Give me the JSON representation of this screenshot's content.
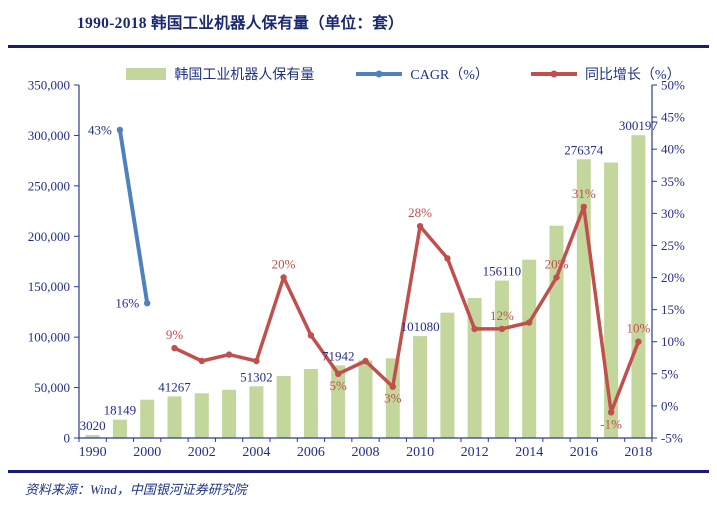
{
  "title": "1990-2018 韩国工业机器人保有量（单位：套）",
  "source": "资料来源：Wind，中国银河证券研究院",
  "colors": {
    "bar_green": "#C3D69B",
    "cagr_blue": "#4F81BD",
    "yoy_red": "#C0504D",
    "navy_text": "#232E8A",
    "rule_navy": "#1A1A78"
  },
  "legend": [
    {
      "label": "韩国工业机器人保有量",
      "type": "bar",
      "color": "#C3D69B"
    },
    {
      "label": "CAGR（%）",
      "type": "line",
      "color": "#4F81BD"
    },
    {
      "label": "同比增长（%）",
      "type": "line",
      "color": "#C0504D"
    }
  ],
  "chart_data": {
    "type": "bar",
    "subtype": "bar-line combo, dual axis",
    "title": "1990-2018 韩国工业机器人保有量（单位：套）",
    "grid": false,
    "categories": [
      "1990",
      "1995",
      "2000",
      "2001",
      "2002",
      "2003",
      "2004",
      "2005",
      "2006",
      "2007",
      "2008",
      "2009",
      "2010",
      "2011",
      "2012",
      "2013",
      "2014",
      "2015",
      "2016",
      "2017",
      "2018"
    ],
    "left_axis": {
      "min": 0,
      "max": 350000,
      "step": 50000,
      "labels": [
        "0",
        "50,000",
        "100,000",
        "150,000",
        "200,000",
        "250,000",
        "300,000",
        "350,000"
      ]
    },
    "right_axis": {
      "min": -5,
      "max": 50,
      "step": 5,
      "labels": [
        "-5%",
        "0%",
        "5%",
        "10%",
        "15%",
        "20%",
        "25%",
        "30%",
        "35%",
        "40%",
        "45%",
        "50%"
      ]
    },
    "x_ticks": [
      {
        "index": 0,
        "label": "1990"
      },
      {
        "index": 2,
        "label": "2000"
      },
      {
        "index": 4,
        "label": "2002"
      },
      {
        "index": 6,
        "label": "2004"
      },
      {
        "index": 8,
        "label": "2006"
      },
      {
        "index": 10,
        "label": "2008"
      },
      {
        "index": 12,
        "label": "2010"
      },
      {
        "index": 14,
        "label": "2012"
      },
      {
        "index": 16,
        "label": "2014"
      },
      {
        "index": 18,
        "label": "2016"
      },
      {
        "index": 20,
        "label": "2018"
      }
    ],
    "series": [
      {
        "name": "韩国工业机器人保有量",
        "type": "bar",
        "axis": "left",
        "color": "#C3D69B",
        "values": [
          3020,
          18149,
          38000,
          41267,
          44300,
          47800,
          51302,
          61500,
          68400,
          71942,
          76800,
          79000,
          101080,
          124200,
          138900,
          156110,
          176800,
          210500,
          276374,
          273200,
          300197
        ],
        "value_labels": [
          {
            "index": 0,
            "text": "3020"
          },
          {
            "index": 1,
            "text": "18149"
          },
          {
            "index": 3,
            "text": "41267"
          },
          {
            "index": 6,
            "text": "51302"
          },
          {
            "index": 9,
            "text": "71942"
          },
          {
            "index": 12,
            "text": "101080"
          },
          {
            "index": 15,
            "text": "156110"
          },
          {
            "index": 18,
            "text": "276374"
          },
          {
            "index": 20,
            "text": "300197"
          }
        ]
      },
      {
        "name": "CAGR（%）",
        "type": "line",
        "axis": "right",
        "color": "#4F81BD",
        "label_color": "#232E8A",
        "points": [
          {
            "index": 1,
            "value": 43,
            "label": "43%",
            "label_pos": "left"
          },
          {
            "index": 2,
            "value": 16,
            "label": "16%",
            "label_pos": "left"
          }
        ]
      },
      {
        "name": "同比增长（%）",
        "type": "line",
        "axis": "right",
        "color": "#C0504D",
        "label_color": "#C0504D",
        "points": [
          {
            "index": 3,
            "value": 9,
            "label": "9%",
            "label_pos": "above"
          },
          {
            "index": 4,
            "value": 7
          },
          {
            "index": 5,
            "value": 8
          },
          {
            "index": 6,
            "value": 7
          },
          {
            "index": 7,
            "value": 20,
            "label": "20%",
            "label_pos": "above"
          },
          {
            "index": 8,
            "value": 11
          },
          {
            "index": 9,
            "value": 5,
            "label": "5%",
            "label_pos": "below"
          },
          {
            "index": 10,
            "value": 7
          },
          {
            "index": 11,
            "value": 3,
            "label": "3%",
            "label_pos": "below"
          },
          {
            "index": 12,
            "value": 28,
            "label": "28%",
            "label_pos": "above"
          },
          {
            "index": 13,
            "value": 23
          },
          {
            "index": 14,
            "value": 12
          },
          {
            "index": 15,
            "value": 12,
            "label": "12%",
            "label_pos": "above"
          },
          {
            "index": 16,
            "value": 13
          },
          {
            "index": 17,
            "value": 20,
            "label": "20%",
            "label_pos": "above"
          },
          {
            "index": 18,
            "value": 31,
            "label": "31%",
            "label_pos": "above"
          },
          {
            "index": 19,
            "value": -1,
            "label": "-1%",
            "label_pos": "below"
          },
          {
            "index": 20,
            "value": 10,
            "label": "10%",
            "label_pos": "above"
          }
        ]
      }
    ]
  }
}
